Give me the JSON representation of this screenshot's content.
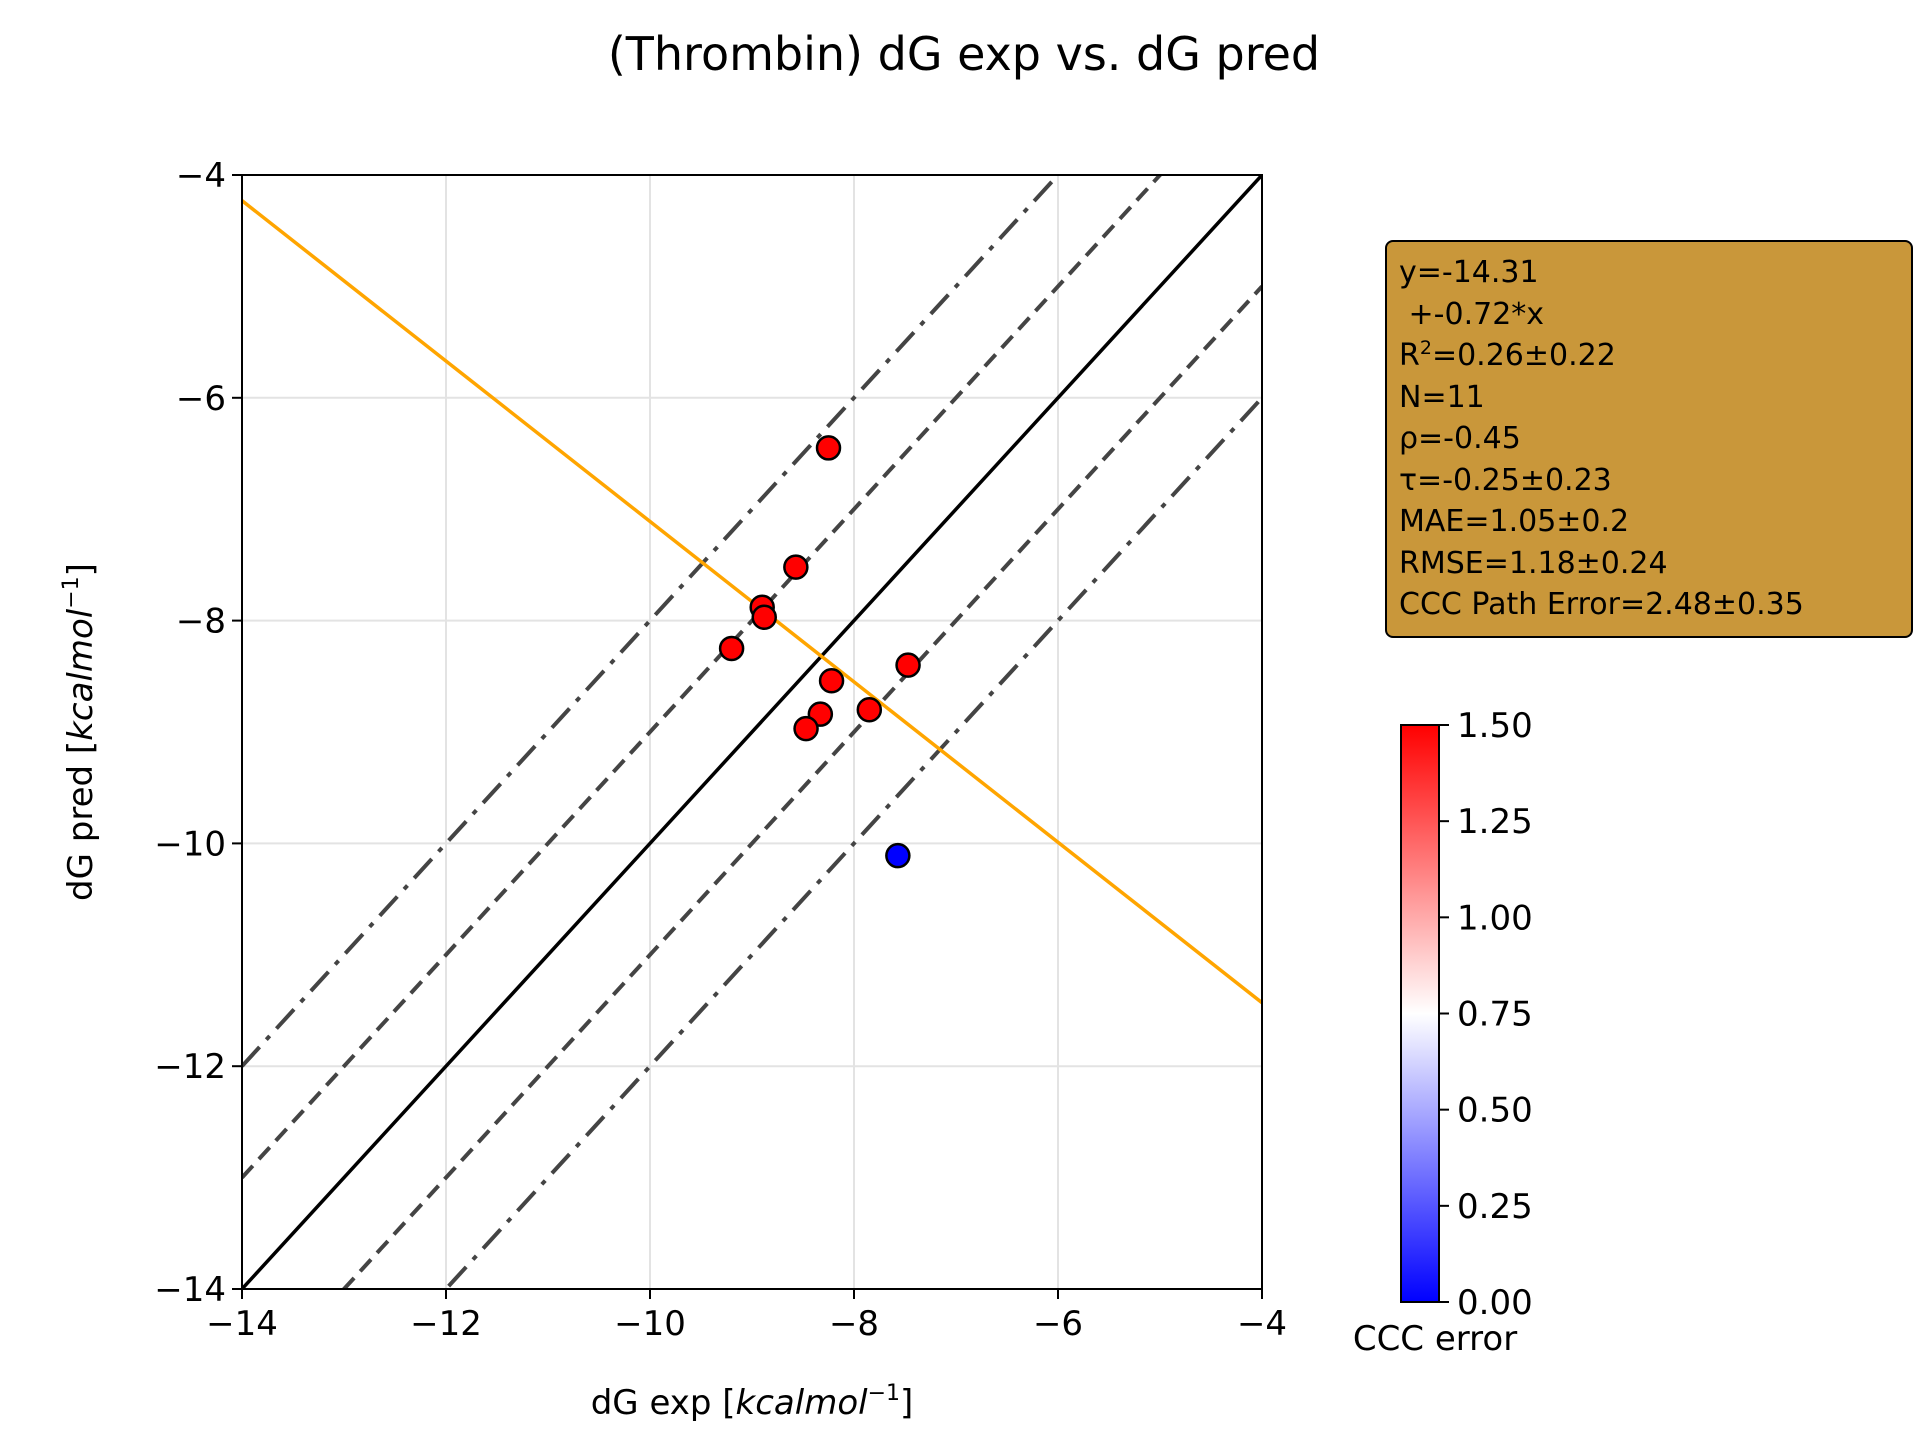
{
  "chart_data": {
    "type": "scatter",
    "title": "(Thrombin) dG exp vs. dG pred",
    "xlabel": "dG exp [kcalmol−1]",
    "ylabel": "dG pred [kcalmol−1]",
    "xlim": [
      -14,
      -4
    ],
    "ylim": [
      -14,
      -4
    ],
    "xticks": [
      "−14",
      "−12",
      "−10",
      "−8",
      "−6",
      "−4"
    ],
    "yticks": [
      "−14",
      "−12",
      "−10",
      "−8",
      "−6",
      "−4"
    ],
    "grid": true,
    "points": [
      {
        "x": -8.25,
        "y": -6.45,
        "error": 1.5
      },
      {
        "x": -8.57,
        "y": -7.52,
        "error": 1.5
      },
      {
        "x": -8.9,
        "y": -7.88,
        "error": 1.5
      },
      {
        "x": -8.88,
        "y": -7.97,
        "error": 1.5
      },
      {
        "x": -9.2,
        "y": -8.25,
        "error": 1.5
      },
      {
        "x": -7.47,
        "y": -8.4,
        "error": 1.5
      },
      {
        "x": -8.22,
        "y": -8.54,
        "error": 1.5
      },
      {
        "x": -7.85,
        "y": -8.8,
        "error": 1.5
      },
      {
        "x": -8.33,
        "y": -8.84,
        "error": 1.5
      },
      {
        "x": -8.47,
        "y": -8.97,
        "error": 1.5
      },
      {
        "x": -7.57,
        "y": -10.11,
        "error": 0.0
      }
    ],
    "fit_line": {
      "intercept": -14.31,
      "slope": -0.72,
      "color": "#ffa500"
    },
    "identity_line": {
      "color": "#000000"
    },
    "dashed_offsets": [
      1,
      -1
    ],
    "dashdot_offsets": [
      2,
      -2
    ],
    "colorbar": {
      "label": "CCC error",
      "min": 0.0,
      "max": 1.5,
      "ticks": [
        "0.00",
        "0.25",
        "0.50",
        "0.75",
        "1.00",
        "1.25",
        "1.50"
      ],
      "colors": [
        "#0000ff",
        "#ffffff",
        "#ff0000"
      ]
    },
    "stats": {
      "line1": "y=-14.31",
      "line2": " +-0.72*x",
      "r2_prefix": "R",
      "r2_sup": "2",
      "r2_value": "=0.26±0.22",
      "n": "N=11",
      "rho": "ρ=-0.45",
      "tau": "τ=-0.25±0.23",
      "mae": "MAE=1.05±0.2",
      "rmse": "RMSE=1.18±0.24",
      "ccc": "CCC Path Error=2.48±0.35",
      "background": "#c9973a"
    }
  }
}
